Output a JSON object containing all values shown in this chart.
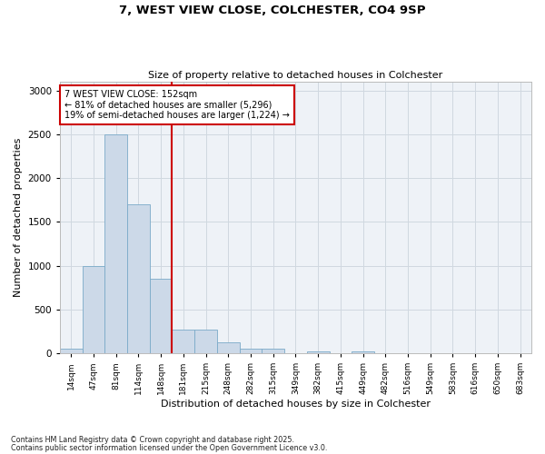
{
  "title1": "7, WEST VIEW CLOSE, COLCHESTER, CO4 9SP",
  "title2": "Size of property relative to detached houses in Colchester",
  "xlabel": "Distribution of detached houses by size in Colchester",
  "ylabel": "Number of detached properties",
  "bin_labels": [
    "14sqm",
    "47sqm",
    "81sqm",
    "114sqm",
    "148sqm",
    "181sqm",
    "215sqm",
    "248sqm",
    "282sqm",
    "315sqm",
    "349sqm",
    "382sqm",
    "415sqm",
    "449sqm",
    "482sqm",
    "516sqm",
    "549sqm",
    "583sqm",
    "616sqm",
    "650sqm",
    "683sqm"
  ],
  "bar_heights": [
    50,
    1000,
    2500,
    1700,
    850,
    275,
    275,
    125,
    50,
    50,
    0,
    25,
    0,
    25,
    0,
    0,
    0,
    0,
    0,
    0,
    0
  ],
  "bar_color": "#ccd9e8",
  "bar_edge_color": "#7aaac8",
  "grid_color": "#d0d8e0",
  "background_color": "#eef2f7",
  "vline_color": "#cc0000",
  "annotation_text": "7 WEST VIEW CLOSE: 152sqm\n← 81% of detached houses are smaller (5,296)\n19% of semi-detached houses are larger (1,224) →",
  "annotation_box_color": "#ffffff",
  "annotation_box_edge": "#cc0000",
  "ylim": [
    0,
    3100
  ],
  "yticks": [
    0,
    500,
    1000,
    1500,
    2000,
    2500,
    3000
  ],
  "footnote1": "Contains HM Land Registry data © Crown copyright and database right 2025.",
  "footnote2": "Contains public sector information licensed under the Open Government Licence v3.0."
}
